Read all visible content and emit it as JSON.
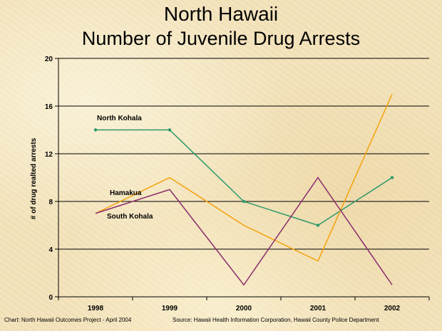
{
  "slide": {
    "title_line1": "North Hawaii",
    "title_line2": "Number of Juvenile Drug Arrests",
    "credit": "Chart:  North Hawaii Outcomes Project - April 2004",
    "source": "Source:  Hawaii Health Information Corporation, Hawaii County Police Department"
  },
  "chart_data": {
    "type": "line",
    "title": "North Hawaii Number of Juvenile Drug Arrests",
    "xlabel": "",
    "ylabel": "# of drug realted arrests",
    "categories": [
      "1998",
      "1999",
      "2000",
      "2001",
      "2002"
    ],
    "ylim": [
      0,
      20
    ],
    "yticks": [
      0,
      4,
      8,
      12,
      16,
      20
    ],
    "grid": true,
    "series": [
      {
        "name": "North Kohala",
        "values": [
          14,
          14,
          8,
          6,
          10
        ],
        "color": "#2e9a6c",
        "markers": true
      },
      {
        "name": "Hamakua",
        "values": [
          7,
          10,
          6,
          3,
          17
        ],
        "color": "#f5a10a",
        "markers": false
      },
      {
        "name": "South Kohala",
        "values": [
          7,
          9,
          1,
          10,
          1
        ],
        "color": "#8b2d6b",
        "markers": false
      }
    ]
  }
}
